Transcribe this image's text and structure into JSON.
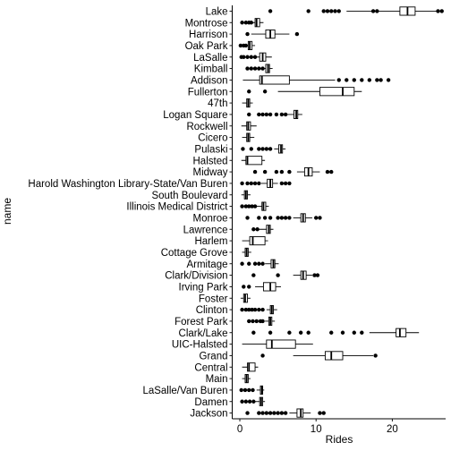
{
  "chart_data": {
    "type": "boxplot",
    "orientation": "horizontal",
    "xlabel": "Rides",
    "ylabel": "name",
    "xlim": [
      -1,
      27
    ],
    "x_ticks": [
      0,
      10,
      20
    ],
    "grid": false,
    "legend": "none",
    "categories": [
      {
        "name": "Lake",
        "min": 14,
        "q1": 21,
        "median": 22,
        "q3": 23,
        "max": 26,
        "outliers": [
          4,
          9,
          11,
          11.5,
          12,
          12.5,
          13,
          17.5,
          18,
          26,
          26.5
        ]
      },
      {
        "name": "Montrose",
        "min": 0.2,
        "q1": 2.0,
        "median": 2.2,
        "q3": 2.6,
        "max": 3.1,
        "outliers": [
          0.3,
          0.8,
          1.2,
          1.5
        ]
      },
      {
        "name": "Harrison",
        "min": 1.5,
        "q1": 3.4,
        "median": 4.0,
        "q3": 4.6,
        "max": 6.5,
        "outliers": [
          1.0,
          7.5
        ]
      },
      {
        "name": "Oak Park",
        "min": 0.3,
        "q1": 1.1,
        "median": 1.3,
        "q3": 1.6,
        "max": 2.0,
        "outliers": [
          0.1,
          0.5,
          0.8
        ]
      },
      {
        "name": "LaSalle",
        "min": 1.2,
        "q1": 2.6,
        "median": 3.0,
        "q3": 3.4,
        "max": 4.2,
        "outliers": [
          0.2,
          0.5,
          1.0,
          1.5,
          2.0
        ]
      },
      {
        "name": "Kimball",
        "min": 1.8,
        "q1": 3.4,
        "median": 3.7,
        "q3": 3.9,
        "max": 4.3,
        "outliers": [
          1.0,
          1.5,
          2.0,
          2.5,
          3.0
        ]
      },
      {
        "name": "Addison",
        "min": 0.4,
        "q1": 2.6,
        "median": 2.9,
        "q3": 6.5,
        "max": 12.5,
        "outliers": [
          13,
          14,
          15,
          16,
          17,
          18,
          18.5,
          19.5
        ]
      },
      {
        "name": "Fullerton",
        "min": 5,
        "q1": 10.5,
        "median": 13.5,
        "q3": 15,
        "max": 16,
        "outliers": [
          1.2,
          3.3
        ]
      },
      {
        "name": "47th",
        "min": 0.3,
        "q1": 0.9,
        "median": 1.1,
        "q3": 1.3,
        "max": 1.7,
        "outliers": []
      },
      {
        "name": "Logan Square",
        "min": 6.2,
        "q1": 7.1,
        "median": 7.4,
        "q3": 7.6,
        "max": 8.2,
        "outliers": [
          1.2,
          2.5,
          3.0,
          3.5,
          4.0,
          4.8,
          5.5,
          6.0
        ]
      },
      {
        "name": "Rockwell",
        "min": 0.2,
        "q1": 0.9,
        "median": 1.1,
        "q3": 1.4,
        "max": 2.2,
        "outliers": []
      },
      {
        "name": "Cicero",
        "min": 0.3,
        "q1": 0.9,
        "median": 1.1,
        "q3": 1.3,
        "max": 1.9,
        "outliers": []
      },
      {
        "name": "Pulaski",
        "min": 4.5,
        "q1": 5.1,
        "median": 5.4,
        "q3": 5.6,
        "max": 6.0,
        "outliers": [
          0.4,
          1.5,
          2.5,
          3.0,
          3.5,
          4.0
        ]
      },
      {
        "name": "Halsted",
        "min": 0.2,
        "q1": 0.8,
        "median": 1.0,
        "q3": 2.9,
        "max": 3.3,
        "outliers": []
      },
      {
        "name": "Midway",
        "min": 7.5,
        "q1": 8.5,
        "median": 9.0,
        "q3": 9.5,
        "max": 10.5,
        "outliers": [
          2.0,
          3.3,
          4.8,
          5.5,
          6.5,
          11.5,
          12.0
        ]
      },
      {
        "name": "Harold Washington Library-State/Van Buren",
        "min": 2.8,
        "q1": 3.6,
        "median": 4.0,
        "q3": 4.3,
        "max": 5.0,
        "outliers": [
          0.3,
          1.0,
          1.5,
          2.0,
          2.5,
          5.5,
          6.0,
          6.5
        ]
      },
      {
        "name": "South Boulevard",
        "min": 0.2,
        "q1": 0.6,
        "median": 0.8,
        "q3": 1.0,
        "max": 1.4,
        "outliers": []
      },
      {
        "name": "Illinois Medical District",
        "min": 2.2,
        "q1": 2.9,
        "median": 3.1,
        "q3": 3.4,
        "max": 3.8,
        "outliers": [
          0.3,
          0.8,
          1.2,
          1.6,
          2.0
        ]
      },
      {
        "name": "Monroe",
        "min": 7.0,
        "q1": 8.0,
        "median": 8.3,
        "q3": 8.6,
        "max": 9.5,
        "outliers": [
          1.0,
          2.5,
          3.3,
          4.0,
          5.0,
          5.5,
          6.0,
          6.5,
          10.0,
          10.5
        ]
      },
      {
        "name": "Lawrence",
        "min": 2.5,
        "q1": 3.5,
        "median": 3.8,
        "q3": 4.0,
        "max": 4.4,
        "outliers": [
          1.8,
          2.3
        ]
      },
      {
        "name": "Harlem",
        "min": 0.3,
        "q1": 1.3,
        "median": 1.7,
        "q3": 3.3,
        "max": 3.7,
        "outliers": []
      },
      {
        "name": "Cottage Grove",
        "min": 0.3,
        "q1": 0.7,
        "median": 0.9,
        "q3": 1.1,
        "max": 1.5,
        "outliers": []
      },
      {
        "name": "Armitage",
        "min": 3.3,
        "q1": 4.1,
        "median": 4.4,
        "q3": 4.6,
        "max": 5.1,
        "outliers": [
          0.3,
          1.2,
          2.0,
          2.5,
          3.0
        ]
      },
      {
        "name": "Clark/Division",
        "min": 7.0,
        "q1": 8.0,
        "median": 8.3,
        "q3": 8.7,
        "max": 9.5,
        "outliers": [
          1.8,
          5.0,
          9.8,
          10.2
        ]
      },
      {
        "name": "Irving Park",
        "min": 2.0,
        "q1": 3.1,
        "median": 4.0,
        "q3": 4.7,
        "max": 5.4,
        "outliers": [
          0.5,
          1.2
        ]
      },
      {
        "name": "Foster",
        "min": 0.1,
        "q1": 0.5,
        "median": 0.7,
        "q3": 1.0,
        "max": 1.4,
        "outliers": []
      },
      {
        "name": "Clinton",
        "min": 3.5,
        "q1": 4.0,
        "median": 4.2,
        "q3": 4.4,
        "max": 4.9,
        "outliers": [
          0.3,
          0.8,
          1.2,
          1.6,
          2.0,
          2.5,
          3.0
        ]
      },
      {
        "name": "Forest Park",
        "min": 3.3,
        "q1": 3.8,
        "median": 4.0,
        "q3": 4.2,
        "max": 4.6,
        "outliers": [
          1.2,
          1.7,
          2.2,
          2.7,
          3.0
        ]
      },
      {
        "name": "Clark/Lake",
        "min": 17,
        "q1": 20.5,
        "median": 21.0,
        "q3": 21.8,
        "max": 23.5,
        "outliers": [
          1.8,
          4.0,
          6.5,
          8.0,
          9.0,
          12.0,
          13.5,
          15.0,
          16.0
        ]
      },
      {
        "name": "UIC-Halsted",
        "min": 0.3,
        "q1": 3.5,
        "median": 4.2,
        "q3": 7.3,
        "max": 9.6,
        "outliers": []
      },
      {
        "name": "Grand",
        "min": 7.0,
        "q1": 11.2,
        "median": 12.0,
        "q3": 13.5,
        "max": 17.5,
        "outliers": [
          3.0,
          17.8
        ]
      },
      {
        "name": "Central",
        "min": 0.3,
        "q1": 1.0,
        "median": 1.2,
        "q3": 2.0,
        "max": 2.4,
        "outliers": []
      },
      {
        "name": "Main",
        "min": 0.3,
        "q1": 0.7,
        "median": 0.9,
        "q3": 1.1,
        "max": 1.4,
        "outliers": []
      },
      {
        "name": "LaSalle/Van Buren",
        "min": 2.2,
        "q1": 2.7,
        "median": 2.9,
        "q3": 3.0,
        "max": 3.2,
        "outliers": [
          0.2,
          0.7,
          1.2,
          1.7
        ]
      },
      {
        "name": "Damen",
        "min": 2.0,
        "q1": 2.6,
        "median": 2.8,
        "q3": 3.0,
        "max": 3.3,
        "outliers": [
          0.3,
          0.8,
          1.3,
          1.8
        ]
      },
      {
        "name": "Jackson",
        "min": 6.5,
        "q1": 7.5,
        "median": 8.0,
        "q3": 8.3,
        "max": 9.3,
        "outliers": [
          1.0,
          2.5,
          3.0,
          3.5,
          4.0,
          4.5,
          5.0,
          5.5,
          6.0,
          10.5,
          11.0
        ]
      }
    ]
  }
}
